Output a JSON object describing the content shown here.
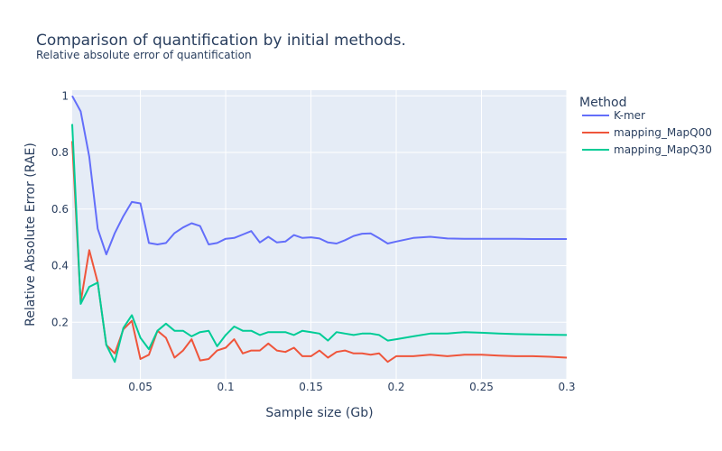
{
  "chart_data": {
    "type": "line",
    "title": "Comparison of quantification by initial methods.",
    "subtitle": "Relative absolute error of quantification",
    "xlabel": "Sample size (Gb)",
    "ylabel": "Relative Absolute Error (RAE)",
    "xlim": [
      0.01,
      0.3
    ],
    "ylim": [
      0.0,
      1.02
    ],
    "x_ticks": [
      0.05,
      0.1,
      0.15,
      0.2,
      0.25,
      0.3
    ],
    "x_tick_labels": [
      "0.05",
      "0.1",
      "0.15",
      "0.2",
      "0.25",
      "0.3"
    ],
    "y_ticks": [
      0.2,
      0.4,
      0.6,
      0.8,
      1.0
    ],
    "y_tick_labels": [
      "0.2",
      "0.4",
      "0.6",
      "0.8",
      "1"
    ],
    "grid": true,
    "legend_title": "Method",
    "legend_position": "right",
    "series": [
      {
        "name": "K-mer",
        "color": "#636efa",
        "x": [
          0.01,
          0.015,
          0.02,
          0.025,
          0.03,
          0.035,
          0.04,
          0.045,
          0.05,
          0.055,
          0.06,
          0.065,
          0.07,
          0.075,
          0.08,
          0.085,
          0.09,
          0.095,
          0.1,
          0.105,
          0.11,
          0.115,
          0.12,
          0.125,
          0.13,
          0.135,
          0.14,
          0.145,
          0.15,
          0.155,
          0.16,
          0.165,
          0.17,
          0.175,
          0.18,
          0.185,
          0.19,
          0.195,
          0.2,
          0.21,
          0.22,
          0.23,
          0.24,
          0.25,
          0.26,
          0.27,
          0.28,
          0.29,
          0.3
        ],
        "y": [
          1.0,
          0.945,
          0.785,
          0.53,
          0.44,
          0.515,
          0.575,
          0.625,
          0.62,
          0.48,
          0.475,
          0.48,
          0.515,
          0.535,
          0.55,
          0.54,
          0.475,
          0.48,
          0.495,
          0.498,
          0.51,
          0.522,
          0.482,
          0.502,
          0.482,
          0.485,
          0.508,
          0.498,
          0.5,
          0.496,
          0.482,
          0.478,
          0.49,
          0.505,
          0.513,
          0.514,
          0.497,
          0.478,
          0.485,
          0.498,
          0.502,
          0.496,
          0.495,
          0.495,
          0.495,
          0.495,
          0.494,
          0.494,
          0.494
        ]
      },
      {
        "name": "mapping_MapQ00",
        "color": "#ef553b",
        "x": [
          0.01,
          0.015,
          0.02,
          0.025,
          0.03,
          0.035,
          0.04,
          0.045,
          0.05,
          0.055,
          0.06,
          0.065,
          0.07,
          0.075,
          0.08,
          0.085,
          0.09,
          0.095,
          0.1,
          0.105,
          0.11,
          0.115,
          0.12,
          0.125,
          0.13,
          0.135,
          0.14,
          0.145,
          0.15,
          0.155,
          0.16,
          0.165,
          0.17,
          0.175,
          0.18,
          0.185,
          0.19,
          0.195,
          0.2,
          0.21,
          0.22,
          0.23,
          0.24,
          0.25,
          0.26,
          0.27,
          0.28,
          0.29,
          0.3
        ],
        "y": [
          0.84,
          0.27,
          0.455,
          0.34,
          0.12,
          0.09,
          0.175,
          0.205,
          0.07,
          0.085,
          0.17,
          0.145,
          0.075,
          0.1,
          0.14,
          0.065,
          0.07,
          0.1,
          0.11,
          0.14,
          0.09,
          0.1,
          0.1,
          0.125,
          0.1,
          0.095,
          0.11,
          0.08,
          0.08,
          0.1,
          0.075,
          0.095,
          0.1,
          0.09,
          0.09,
          0.085,
          0.09,
          0.06,
          0.08,
          0.08,
          0.085,
          0.08,
          0.085,
          0.085,
          0.082,
          0.08,
          0.08,
          0.078,
          0.075
        ]
      },
      {
        "name": "mapping_MapQ30",
        "color": "#00cc96",
        "x": [
          0.01,
          0.015,
          0.02,
          0.025,
          0.03,
          0.035,
          0.04,
          0.045,
          0.05,
          0.055,
          0.06,
          0.065,
          0.07,
          0.075,
          0.08,
          0.085,
          0.09,
          0.095,
          0.1,
          0.105,
          0.11,
          0.115,
          0.12,
          0.125,
          0.13,
          0.135,
          0.14,
          0.145,
          0.15,
          0.155,
          0.16,
          0.165,
          0.17,
          0.175,
          0.18,
          0.185,
          0.19,
          0.195,
          0.2,
          0.21,
          0.22,
          0.23,
          0.24,
          0.25,
          0.26,
          0.27,
          0.28,
          0.29,
          0.3
        ],
        "y": [
          0.9,
          0.265,
          0.325,
          0.34,
          0.12,
          0.06,
          0.18,
          0.225,
          0.145,
          0.105,
          0.17,
          0.195,
          0.17,
          0.17,
          0.15,
          0.165,
          0.17,
          0.115,
          0.155,
          0.185,
          0.17,
          0.17,
          0.155,
          0.165,
          0.165,
          0.165,
          0.155,
          0.17,
          0.165,
          0.16,
          0.135,
          0.165,
          0.16,
          0.155,
          0.16,
          0.16,
          0.155,
          0.135,
          0.14,
          0.15,
          0.16,
          0.16,
          0.165,
          0.163,
          0.16,
          0.158,
          0.157,
          0.156,
          0.155
        ]
      }
    ]
  }
}
